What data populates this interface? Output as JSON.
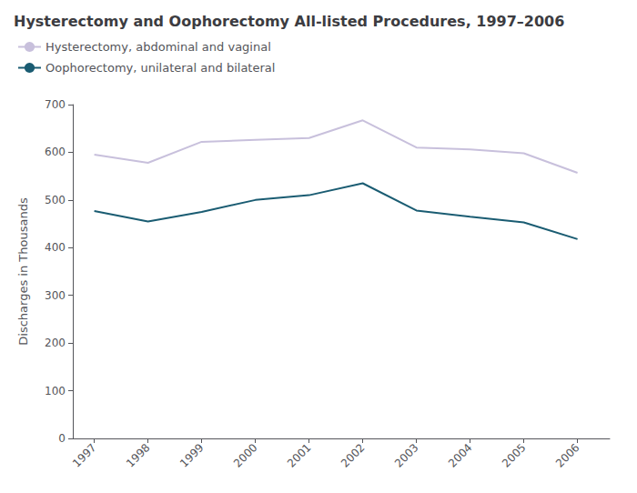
{
  "chart_data": {
    "type": "line",
    "title": "Hysterectomy and Oophorectomy All-listed Procedures, 1997–2006",
    "ylabel": "Discharges in Thousands",
    "x": [
      1997,
      1998,
      1999,
      2000,
      2001,
      2002,
      2003,
      2004,
      2005,
      2006
    ],
    "series": [
      {
        "name": "Hysterectomy, abdominal and vaginal",
        "color": "#c8c0dc",
        "values": [
          595,
          578,
          622,
          626,
          630,
          667,
          610,
          606,
          598,
          557
        ]
      },
      {
        "name": "Oophorectomy, unilateral and bilateral",
        "color": "#1a5c72",
        "values": [
          477,
          455,
          475,
          500,
          510,
          535,
          478,
          465,
          453,
          418
        ]
      }
    ],
    "xlim": [
      1996.6,
      2006.6
    ],
    "xticks": [
      1997,
      1998,
      1999,
      2000,
      2001,
      2002,
      2003,
      2004,
      2005,
      2006
    ],
    "ylim": [
      0,
      700
    ],
    "yticks": [
      0,
      100,
      200,
      300,
      400,
      500,
      600,
      700
    ],
    "grid": false,
    "legend": "upper left"
  }
}
